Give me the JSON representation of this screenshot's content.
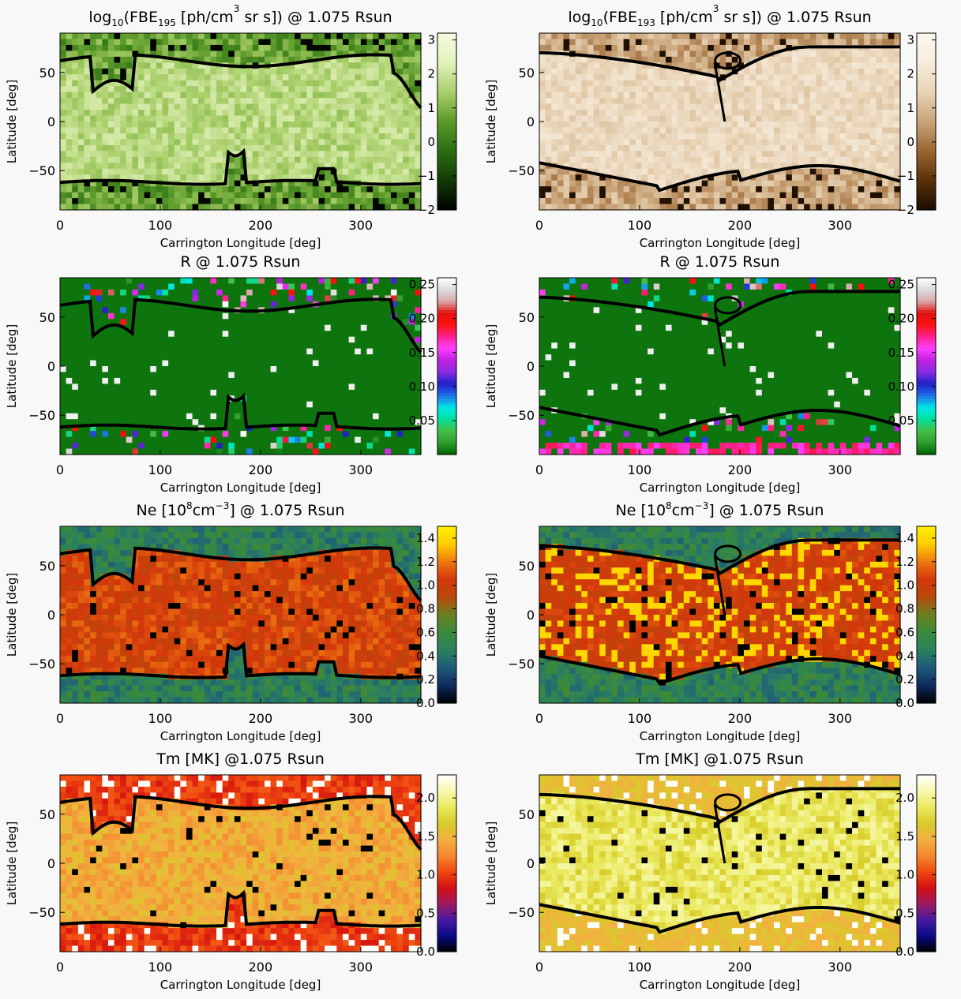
{
  "chart_data": [
    {
      "type": "heatmap",
      "title_parts": [
        "log",
        "10",
        "(FBE",
        "195",
        " [ph/cm",
        "3",
        " sr s]) @ 1.075 Rsun"
      ],
      "xlabel": "Carrington Longitude [deg]",
      "ylabel": "Latitude [deg]",
      "xlim": [
        0,
        360
      ],
      "ylim": [
        -90,
        90
      ],
      "xticks": [
        "0",
        "100",
        "200",
        "300"
      ],
      "yticks": [
        "50",
        "0",
        "−50"
      ],
      "colorbar": {
        "min": -2,
        "max": 3.2,
        "ticks": [
          "3",
          "2",
          "1",
          "0",
          "−1",
          "−2"
        ],
        "tick_values": [
          3,
          2,
          1,
          0,
          -1,
          -2
        ],
        "colors": [
          "#000000",
          "#123a06",
          "#2a6e12",
          "#5c9a2a",
          "#a9cf6a",
          "#e3f2bc",
          "#f3fae0"
        ]
      },
      "palette": "green"
    },
    {
      "type": "heatmap",
      "title_parts": [
        "log",
        "10",
        "(FBE",
        "193",
        " [ph/cm",
        "3",
        " sr s]) @ 1.075 Rsun"
      ],
      "xlabel": "Carrington Longitude [deg]",
      "ylabel": "Latitude [deg]",
      "xlim": [
        0,
        360
      ],
      "ylim": [
        -90,
        90
      ],
      "xticks": [
        "0",
        "100",
        "200",
        "300"
      ],
      "yticks": [
        "50",
        "0",
        "−50"
      ],
      "colorbar": {
        "min": -2,
        "max": 3.2,
        "ticks": [
          "3",
          "2",
          "1",
          "0",
          "−1",
          "−2"
        ],
        "tick_values": [
          3,
          2,
          1,
          0,
          -1,
          -2
        ],
        "colors": [
          "#1a0c00",
          "#5c3008",
          "#9a6532",
          "#c9a479",
          "#e8d3b5",
          "#f6ecdc",
          "#fbf6ee"
        ]
      },
      "palette": "brown"
    },
    {
      "type": "heatmap",
      "title_parts": [
        "R @ 1.075 Rsun"
      ],
      "xlabel": "Carrington Longitude [deg]",
      "ylabel": "Latitude [deg]",
      "xlim": [
        0,
        360
      ],
      "ylim": [
        -90,
        90
      ],
      "xticks": [
        "0",
        "100",
        "200",
        "300"
      ],
      "yticks": [
        "50",
        "0",
        "−50"
      ],
      "colorbar": {
        "min": 0,
        "max": 0.26,
        "ticks": [
          "0.25",
          "0.20",
          "0.15",
          "0.10",
          "0.05"
        ],
        "tick_values": [
          0.25,
          0.2,
          0.15,
          0.1,
          0.05
        ],
        "colors": [
          "#006400",
          "#2e9e2e",
          "#46c046",
          "#00e0a0",
          "#00e8e8",
          "#1e6ee8",
          "#2020c8",
          "#8a2be2",
          "#c020e0",
          "#ff40ff",
          "#ff2090",
          "#ff1010",
          "#e01010",
          "#d8a8a8",
          "#dcdcdc",
          "#ffffff"
        ]
      },
      "palette": "rspec"
    },
    {
      "type": "heatmap",
      "title_parts": [
        "R @ 1.075 Rsun"
      ],
      "xlabel": "Carrington Longitude [deg]",
      "ylabel": "Latitude [deg]",
      "xlim": [
        0,
        360
      ],
      "ylim": [
        -90,
        90
      ],
      "xticks": [
        "0",
        "100",
        "200",
        "300"
      ],
      "yticks": [
        "50",
        "0",
        "−50"
      ],
      "colorbar": {
        "min": 0,
        "max": 0.26,
        "ticks": [
          "0.25",
          "0.20",
          "0.15",
          "0.10",
          "0.05"
        ],
        "tick_values": [
          0.25,
          0.2,
          0.15,
          0.1,
          0.05
        ],
        "colors": [
          "#006400",
          "#2e9e2e",
          "#46c046",
          "#00e0a0",
          "#00e8e8",
          "#1e6ee8",
          "#2020c8",
          "#8a2be2",
          "#c020e0",
          "#ff40ff",
          "#ff2090",
          "#ff1010",
          "#e01010",
          "#d8a8a8",
          "#dcdcdc",
          "#ffffff"
        ]
      },
      "palette": "rspec"
    },
    {
      "type": "heatmap",
      "title_parts": [
        "Ne [10",
        "8",
        "cm",
        "−3",
        "] @ 1.075 Rsun"
      ],
      "xlabel": "Carrington Longitude [deg]",
      "ylabel": "Latitude [deg]",
      "xlim": [
        0,
        360
      ],
      "ylim": [
        -90,
        90
      ],
      "xticks": [
        "0",
        "100",
        "200",
        "300"
      ],
      "yticks": [
        "50",
        "0",
        "−50"
      ],
      "colorbar": {
        "min": 0,
        "max": 1.5,
        "ticks": [
          "1.4",
          "1.2",
          "1.0",
          "0.8",
          "0.6",
          "0.4",
          "0.2",
          "0.0"
        ],
        "tick_values": [
          1.4,
          1.2,
          1.0,
          0.8,
          0.6,
          0.4,
          0.2,
          0.0
        ],
        "colors": [
          "#000000",
          "#102a60",
          "#1e5a7a",
          "#2a8060",
          "#3a8a3a",
          "#6a8020",
          "#b84a0a",
          "#d4360c",
          "#ee7a10",
          "#ffcc00",
          "#fff000"
        ]
      },
      "palette": "ne"
    },
    {
      "type": "heatmap",
      "title_parts": [
        "Ne [10",
        "8",
        "cm",
        "−3",
        "] @ 1.075 Rsun"
      ],
      "xlabel": "Carrington Longitude [deg]",
      "ylabel": "Latitude [deg]",
      "xlim": [
        0,
        360
      ],
      "ylim": [
        -90,
        90
      ],
      "xticks": [
        "0",
        "100",
        "200",
        "300"
      ],
      "yticks": [
        "50",
        "0",
        "−50"
      ],
      "colorbar": {
        "min": 0,
        "max": 1.5,
        "ticks": [
          "1.4",
          "1.2",
          "1.0",
          "0.8",
          "0.6",
          "0.4",
          "0.2",
          "0.0"
        ],
        "tick_values": [
          1.4,
          1.2,
          1.0,
          0.8,
          0.6,
          0.4,
          0.2,
          0.0
        ],
        "colors": [
          "#000000",
          "#102a60",
          "#1e5a7a",
          "#2a8060",
          "#3a8a3a",
          "#6a8020",
          "#b84a0a",
          "#d4360c",
          "#ee7a10",
          "#ffcc00",
          "#fff000"
        ]
      },
      "palette": "ne"
    },
    {
      "type": "heatmap",
      "title_parts": [
        "Tm [MK] @1.075 Rsun"
      ],
      "xlabel": "Carrington Longitude [deg]",
      "ylabel": "Latitude [deg]",
      "xlim": [
        0,
        360
      ],
      "ylim": [
        -90,
        90
      ],
      "xticks": [
        "0",
        "100",
        "200",
        "300"
      ],
      "yticks": [
        "50",
        "0",
        "−50"
      ],
      "colorbar": {
        "min": 0,
        "max": 2.3,
        "ticks": [
          "2.0",
          "1.5",
          "1.0",
          "0.5",
          "0.0"
        ],
        "tick_values": [
          2.0,
          1.5,
          1.0,
          0.5,
          0.0
        ],
        "colors": [
          "#000000",
          "#0a0a8a",
          "#4a1aa0",
          "#a01a60",
          "#d41010",
          "#f04a10",
          "#f48a30",
          "#f2b040",
          "#d8cc2a",
          "#eaea60",
          "#f8f8b0",
          "#ffffff"
        ]
      },
      "palette": "tm"
    },
    {
      "type": "heatmap",
      "title_parts": [
        "Tm [MK] @1.075 Rsun"
      ],
      "xlabel": "Carrington Longitude [deg]",
      "ylabel": "Latitude [deg]",
      "xlim": [
        0,
        360
      ],
      "ylim": [
        -90,
        90
      ],
      "xticks": [
        "0",
        "100",
        "200",
        "300"
      ],
      "yticks": [
        "50",
        "0",
        "−50"
      ],
      "colorbar": {
        "min": 0,
        "max": 2.3,
        "ticks": [
          "2.0",
          "1.5",
          "1.0",
          "0.5",
          "0.0"
        ],
        "tick_values": [
          2.0,
          1.5,
          1.0,
          0.5,
          0.0
        ],
        "colors": [
          "#000000",
          "#0a0a8a",
          "#4a1aa0",
          "#a01a60",
          "#d41010",
          "#f04a10",
          "#f48a30",
          "#f2b040",
          "#d8cc2a",
          "#eaea60",
          "#f8f8b0",
          "#ffffff"
        ]
      },
      "palette": "tm"
    }
  ]
}
